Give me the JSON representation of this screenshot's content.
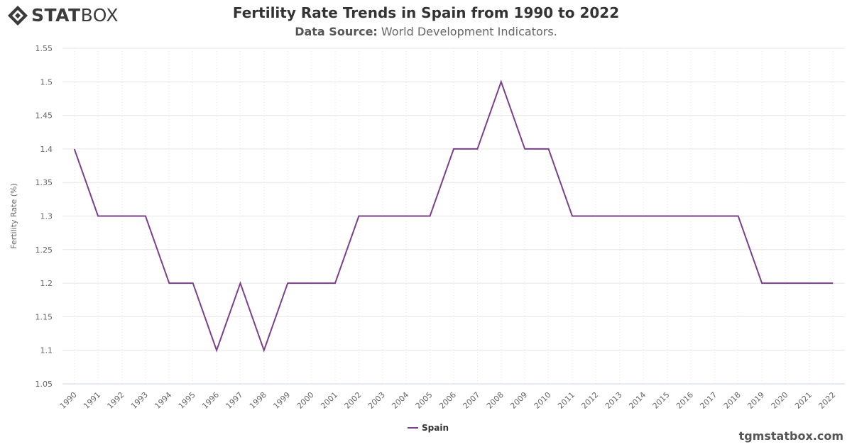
{
  "brand": {
    "logo_bold": "STAT",
    "logo_thin": "BOX",
    "logo_icon": "diamond-logo-icon"
  },
  "header": {
    "title": "Fertility Rate Trends in Spain from 1990 to 2022",
    "source_label": "Data Source:",
    "source_value": "World Development Indicators."
  },
  "footer": {
    "site": "tgmstatbox.com"
  },
  "colors": {
    "series": "#7b3f8c",
    "grid": "#e6e6e6",
    "axis": "#ccd6eb"
  },
  "chart_data": {
    "type": "line",
    "title": "Fertility Rate Trends in Spain from 1990 to 2022",
    "xlabel": "",
    "ylabel": "Fertility Rate (%)",
    "ylim": [
      1.05,
      1.55
    ],
    "yticks": [
      "1.05",
      "1.1",
      "1.15",
      "1.2",
      "1.25",
      "1.3",
      "1.35",
      "1.4",
      "1.45",
      "1.5",
      "1.55"
    ],
    "x": [
      "1990",
      "1991",
      "1992",
      "1993",
      "1994",
      "1995",
      "1996",
      "1997",
      "1998",
      "1999",
      "2000",
      "2001",
      "2002",
      "2003",
      "2004",
      "2005",
      "2006",
      "2007",
      "2008",
      "2009",
      "2010",
      "2011",
      "2012",
      "2013",
      "2014",
      "2015",
      "2016",
      "2017",
      "2018",
      "2019",
      "2020",
      "2021",
      "2022"
    ],
    "series": [
      {
        "name": "Spain",
        "values": [
          1.4,
          1.3,
          1.3,
          1.3,
          1.2,
          1.2,
          1.1,
          1.2,
          1.1,
          1.2,
          1.2,
          1.2,
          1.3,
          1.3,
          1.3,
          1.3,
          1.4,
          1.4,
          1.5,
          1.4,
          1.4,
          1.3,
          1.3,
          1.3,
          1.3,
          1.3,
          1.3,
          1.3,
          1.3,
          1.2,
          1.2,
          1.2,
          1.2
        ]
      }
    ],
    "grid": true,
    "legend": "bottom-center"
  }
}
